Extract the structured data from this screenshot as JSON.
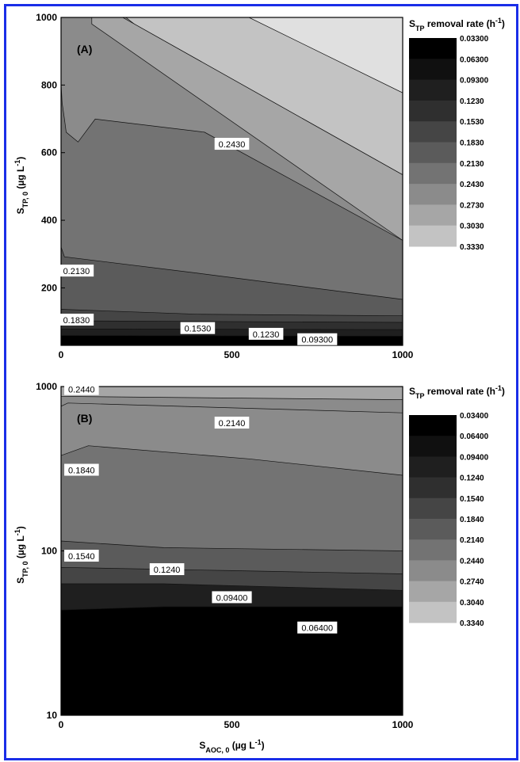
{
  "chart_data": [
    {
      "type": "contour",
      "panel_label": "(A)",
      "legend_title": "S",
      "legend_title_sub": "TP",
      "legend_title_rest": " removal rate (h",
      "legend_title_sup": "-1",
      "legend_title_end": ")",
      "legend_levels": [
        "0.03300",
        "0.06300",
        "0.09300",
        "0.1230",
        "0.1530",
        "0.1830",
        "0.2130",
        "0.2430",
        "0.2730",
        "0.3030",
        "0.3330"
      ],
      "legend_colors": [
        "#000000",
        "#101010",
        "#1f1f1f",
        "#2f2f2f",
        "#454545",
        "#5b5b5b",
        "#737373",
        "#8b8b8b",
        "#a6a6a6",
        "#c3c3c3",
        "#e0e0e0"
      ],
      "x_ticks": [
        "0",
        "500",
        "1000"
      ],
      "y_ticks": [
        "200",
        "400",
        "600",
        "800",
        "1000"
      ],
      "y_scale": "linear",
      "ylabel_main": "S",
      "ylabel_sub": "TP, 0",
      "ylabel_unit": " (µg L",
      "ylabel_sup": "-1",
      "ylabel_end": ")",
      "contour_labels": [
        {
          "text": "0.2430",
          "x": 500,
          "y": 625
        },
        {
          "text": "0.2130",
          "x": 45,
          "y": 250
        },
        {
          "text": "0.1830",
          "x": 45,
          "y": 105
        },
        {
          "text": "0.1530",
          "x": 400,
          "y": 80
        },
        {
          "text": "0.1230",
          "x": 600,
          "y": 63
        },
        {
          "text": "0.09300",
          "x": 750,
          "y": 47
        }
      ]
    },
    {
      "type": "contour",
      "panel_label": "(B)",
      "legend_title": "S",
      "legend_title_sub": "TP",
      "legend_title_rest": " removal rate (h",
      "legend_title_sup": "-1",
      "legend_title_end": ")",
      "legend_levels": [
        "0.03400",
        "0.06400",
        "0.09400",
        "0.1240",
        "0.1540",
        "0.1840",
        "0.2140",
        "0.2440",
        "0.2740",
        "0.3040",
        "0.3340"
      ],
      "legend_colors": [
        "#000000",
        "#101010",
        "#1f1f1f",
        "#2f2f2f",
        "#454545",
        "#5b5b5b",
        "#737373",
        "#8b8b8b",
        "#a6a6a6",
        "#c3c3c3",
        "#e0e0e0"
      ],
      "x_ticks": [
        "0",
        "500",
        "1000"
      ],
      "y_ticks": [
        "10",
        "100",
        "1000"
      ],
      "y_scale": "log",
      "ylabel_main": "S",
      "ylabel_sub": "TP, 0",
      "ylabel_unit": " (µg L",
      "ylabel_sup": "-1",
      "ylabel_end": ")",
      "xlabel_main": "S",
      "xlabel_sub": "AOC, 0",
      "xlabel_unit": " (µg L",
      "xlabel_sup": "-1",
      "xlabel_end": ")",
      "contour_labels": [
        {
          "text": "0.2440",
          "x": 60,
          "y": 960
        },
        {
          "text": "0.2140",
          "x": 500,
          "y": 600
        },
        {
          "text": "0.1840",
          "x": 60,
          "y": 310
        },
        {
          "text": "0.1540",
          "x": 60,
          "y": 93
        },
        {
          "text": "0.1240",
          "x": 310,
          "y": 77
        },
        {
          "text": "0.09400",
          "x": 500,
          "y": 52
        },
        {
          "text": "0.06400",
          "x": 750,
          "y": 34
        }
      ]
    }
  ]
}
